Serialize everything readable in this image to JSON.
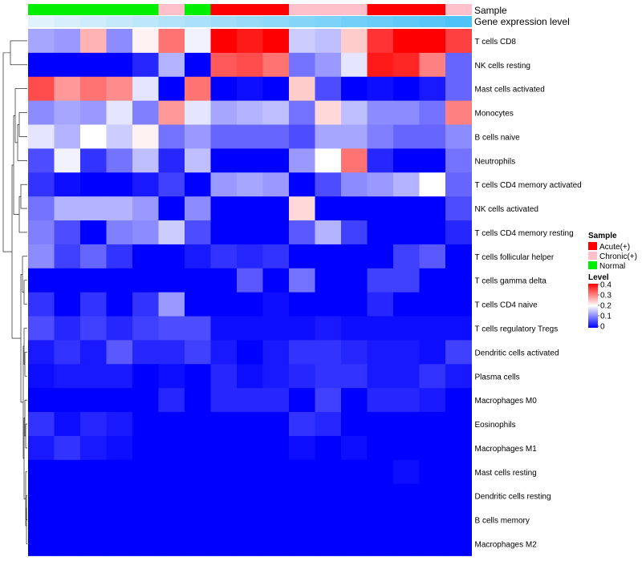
{
  "chart_data": {
    "type": "heatmap",
    "annotation_labels": [
      "Sample",
      "Gene expression level"
    ],
    "sample_annotation": [
      "Normal",
      "Normal",
      "Normal",
      "Normal",
      "Normal",
      "Chronic(+)",
      "Normal",
      "Acute(+)",
      "Acute(+)",
      "Acute(+)",
      "Chronic(+)",
      "Chronic(+)",
      "Chronic(+)",
      "Acute(+)",
      "Acute(+)",
      "Acute(+)",
      "Chronic(+)"
    ],
    "expression_annotation": [
      0.0,
      0.01,
      0.02,
      0.03,
      0.04,
      0.05,
      0.06,
      0.07,
      0.08,
      0.09,
      0.1,
      0.11,
      0.12,
      0.13,
      0.14,
      0.15,
      0.16
    ],
    "rows": [
      "T cells CD8",
      "NK cells resting",
      "Mast cells activated",
      "Monocytes",
      "B cells naive",
      "Neutrophils",
      "T cells CD4 memory activated",
      "NK cells activated",
      "T cells CD4 memory resting",
      "T cells follicular helper",
      "T cells gamma delta",
      "T cells CD4 naive",
      "T cells regulatory  Tregs",
      "Dendritic cells activated",
      "Plasma cells",
      "Macrophages M0",
      "Eosinophils",
      "Macrophages M1",
      "Mast cells resting",
      "Dendritic cells resting",
      "B cells memory",
      "Macrophages M2"
    ],
    "values": [
      [
        0.13,
        0.12,
        0.26,
        0.11,
        0.21,
        0.31,
        0.19,
        0.4,
        0.38,
        0.4,
        0.16,
        0.15,
        0.24,
        0.36,
        0.4,
        0.4,
        0.35
      ],
      [
        0.0,
        0.0,
        0.0,
        0.0,
        0.03,
        0.14,
        0.0,
        0.33,
        0.34,
        0.31,
        0.09,
        0.12,
        0.18,
        0.38,
        0.37,
        0.3,
        0.08
      ],
      [
        0.34,
        0.28,
        0.31,
        0.29,
        0.18,
        0.0,
        0.31,
        0.0,
        0.01,
        0.0,
        0.24,
        0.06,
        0.0,
        0.01,
        0.0,
        0.02,
        0.08
      ],
      [
        0.11,
        0.13,
        0.12,
        0.18,
        0.1,
        0.28,
        0.18,
        0.13,
        0.14,
        0.15,
        0.09,
        0.23,
        0.15,
        0.11,
        0.11,
        0.09,
        0.3
      ],
      [
        0.18,
        0.14,
        0.2,
        0.16,
        0.21,
        0.09,
        0.12,
        0.08,
        0.08,
        0.08,
        0.06,
        0.13,
        0.13,
        0.1,
        0.08,
        0.08,
        0.11
      ],
      [
        0.06,
        0.19,
        0.04,
        0.09,
        0.15,
        0.03,
        0.15,
        0.0,
        0.0,
        0.0,
        0.12,
        0.2,
        0.31,
        0.03,
        0.0,
        0.0,
        0.09
      ],
      [
        0.04,
        0.01,
        0.0,
        0.0,
        0.02,
        0.05,
        0.0,
        0.12,
        0.13,
        0.12,
        0.0,
        0.06,
        0.11,
        0.12,
        0.14,
        0.2,
        0.08
      ],
      [
        0.09,
        0.14,
        0.14,
        0.14,
        0.12,
        0.0,
        0.11,
        0.0,
        0.0,
        0.0,
        0.23,
        0.0,
        0.0,
        0.0,
        0.0,
        0.0,
        0.06
      ],
      [
        0.1,
        0.06,
        0.0,
        0.1,
        0.11,
        0.16,
        0.06,
        0.0,
        0.0,
        0.0,
        0.07,
        0.14,
        0.05,
        0.0,
        0.0,
        0.0,
        0.03
      ],
      [
        0.11,
        0.05,
        0.08,
        0.04,
        0.0,
        0.0,
        0.02,
        0.04,
        0.03,
        0.04,
        0.0,
        0.0,
        0.0,
        0.0,
        0.05,
        0.07,
        0.0
      ],
      [
        0.0,
        0.0,
        0.0,
        0.0,
        0.0,
        0.0,
        0.0,
        0.0,
        0.07,
        0.0,
        0.09,
        0.0,
        0.0,
        0.05,
        0.05,
        0.0,
        0.0
      ],
      [
        0.04,
        0.0,
        0.04,
        0.0,
        0.04,
        0.12,
        0.0,
        0.0,
        0.0,
        0.01,
        0.0,
        0.0,
        0.0,
        0.03,
        0.0,
        0.0,
        0.0
      ],
      [
        0.06,
        0.03,
        0.05,
        0.03,
        0.05,
        0.06,
        0.06,
        0.01,
        0.01,
        0.01,
        0.01,
        0.02,
        0.01,
        0.01,
        0.01,
        0.01,
        0.01
      ],
      [
        0.02,
        0.04,
        0.02,
        0.07,
        0.03,
        0.03,
        0.05,
        0.02,
        0.0,
        0.02,
        0.04,
        0.04,
        0.03,
        0.02,
        0.02,
        0.01,
        0.05
      ],
      [
        0.01,
        0.02,
        0.02,
        0.02,
        0.0,
        0.01,
        0.0,
        0.03,
        0.01,
        0.02,
        0.03,
        0.04,
        0.04,
        0.02,
        0.02,
        0.04,
        0.02
      ],
      [
        0.0,
        0.0,
        0.0,
        0.0,
        0.0,
        0.03,
        0.0,
        0.03,
        0.03,
        0.03,
        0.0,
        0.05,
        0.0,
        0.03,
        0.03,
        0.02,
        0.0
      ],
      [
        0.04,
        0.01,
        0.03,
        0.02,
        0.0,
        0.0,
        0.0,
        0.0,
        0.0,
        0.0,
        0.04,
        0.03,
        0.0,
        0.0,
        0.0,
        0.0,
        0.0
      ],
      [
        0.02,
        0.04,
        0.02,
        0.01,
        0.0,
        0.0,
        0.0,
        0.0,
        0.0,
        0.0,
        0.01,
        0.0,
        0.01,
        0.0,
        0.0,
        0.0,
        0.0
      ],
      [
        0.0,
        0.0,
        0.0,
        0.0,
        0.0,
        0.0,
        0.0,
        0.0,
        0.0,
        0.0,
        0.0,
        0.0,
        0.0,
        0.0,
        0.01,
        0.0,
        0.0
      ],
      [
        0.0,
        0.0,
        0.0,
        0.0,
        0.0,
        0.0,
        0.0,
        0.0,
        0.0,
        0.0,
        0.0,
        0.0,
        0.0,
        0.0,
        0.0,
        0.0,
        0.0
      ],
      [
        0.0,
        0.0,
        0.0,
        0.0,
        0.0,
        0.0,
        0.0,
        0.0,
        0.0,
        0.0,
        0.0,
        0.0,
        0.0,
        0.0,
        0.0,
        0.0,
        0.0
      ],
      [
        0.0,
        0.0,
        0.0,
        0.0,
        0.0,
        0.0,
        0.0,
        0.0,
        0.0,
        0.0,
        0.0,
        0.0,
        0.0,
        0.0,
        0.0,
        0.0,
        0.0
      ]
    ],
    "color_scale": {
      "low": "#0000ff",
      "mid": "#ffffff",
      "high": "#ff0000",
      "min": 0,
      "mid_value": 0.2,
      "max": 0.4
    },
    "expression_scale": {
      "low": "#e0f2fb",
      "high": "#4fc3f7"
    },
    "legend": {
      "sample_title": "Sample",
      "sample_items": [
        {
          "label": "Acute(+)",
          "color": "#ff0000"
        },
        {
          "label": "Chronic(+)",
          "color": "#ffc0cb"
        },
        {
          "label": "Normal",
          "color": "#00ee00"
        }
      ],
      "level_title": "Level",
      "level_ticks": [
        "0.4",
        "0.3",
        "0.2",
        "0.1",
        "0"
      ],
      "placement": "right"
    }
  }
}
